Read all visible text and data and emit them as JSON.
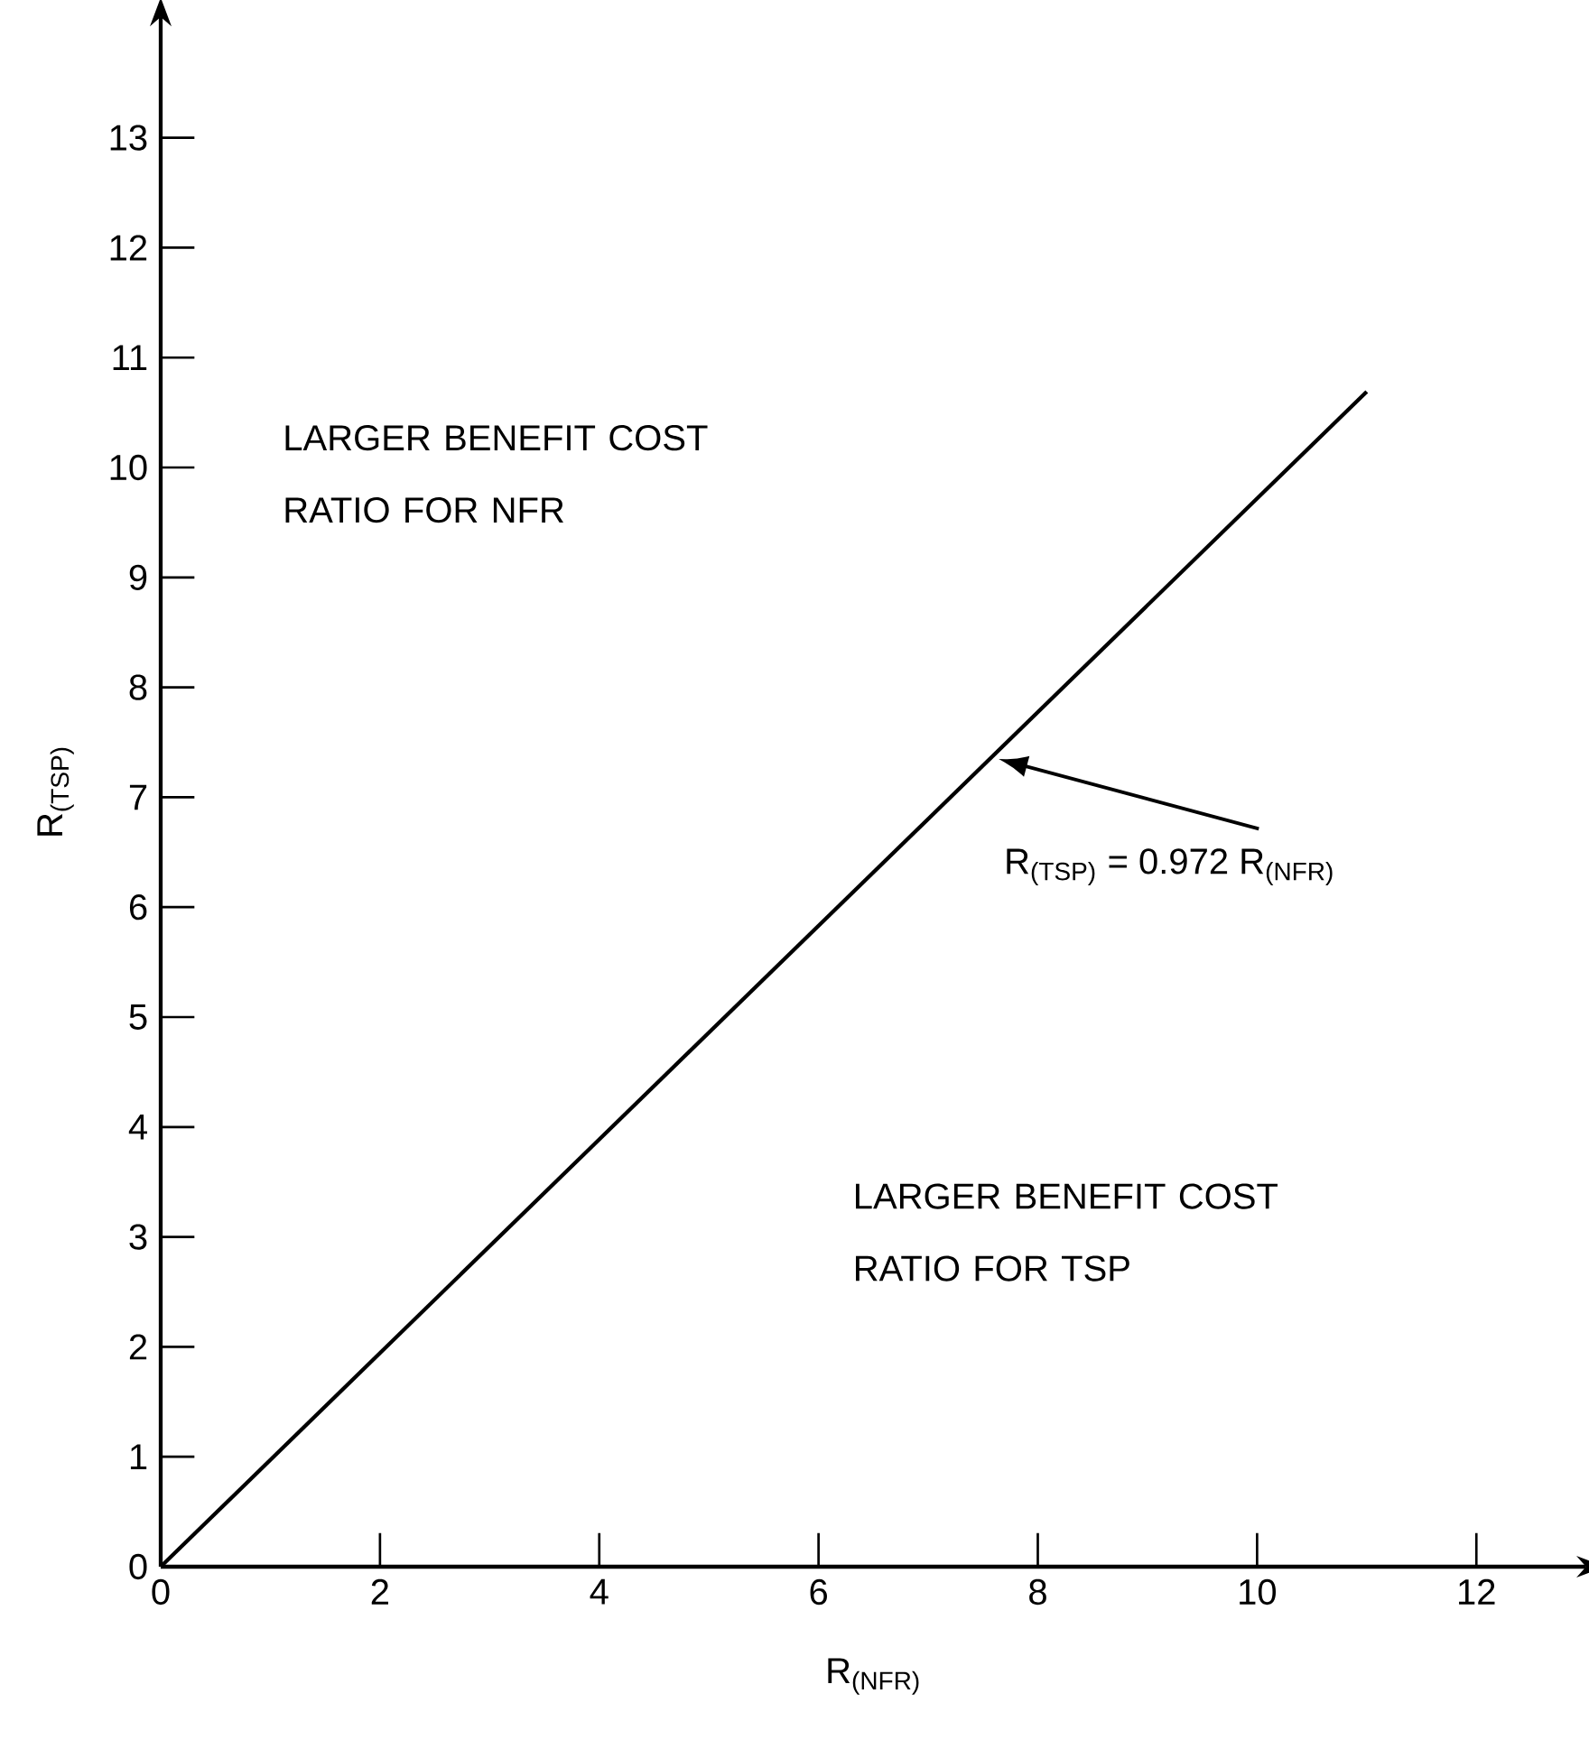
{
  "chart_data": {
    "type": "line",
    "xlabel": "R$_{(NFR)}$",
    "ylabel": "R$_{(TSP)}$",
    "x": [
      0,
      11
    ],
    "values": [
      0,
      10.69
    ],
    "color": "#000000",
    "xlim": [
      0,
      13
    ],
    "ylim": [
      0,
      14.1
    ],
    "xticks": [
      0,
      2,
      4,
      6,
      8,
      10,
      12
    ],
    "yticks": [
      0,
      1,
      2,
      3,
      4,
      5,
      6,
      7,
      8,
      9,
      10,
      11,
      12,
      13
    ],
    "annotations": [
      {
        "text": "R$_{(TSP)}$ = 0.972 R$_{(NFR)}$",
        "x": 7.6,
        "y": 7.37
      },
      "LARGER BENEFIT COST RATIO FOR NFR",
      "LARGER BENEFIT COST RATIO FOR TSP"
    ]
  }
}
